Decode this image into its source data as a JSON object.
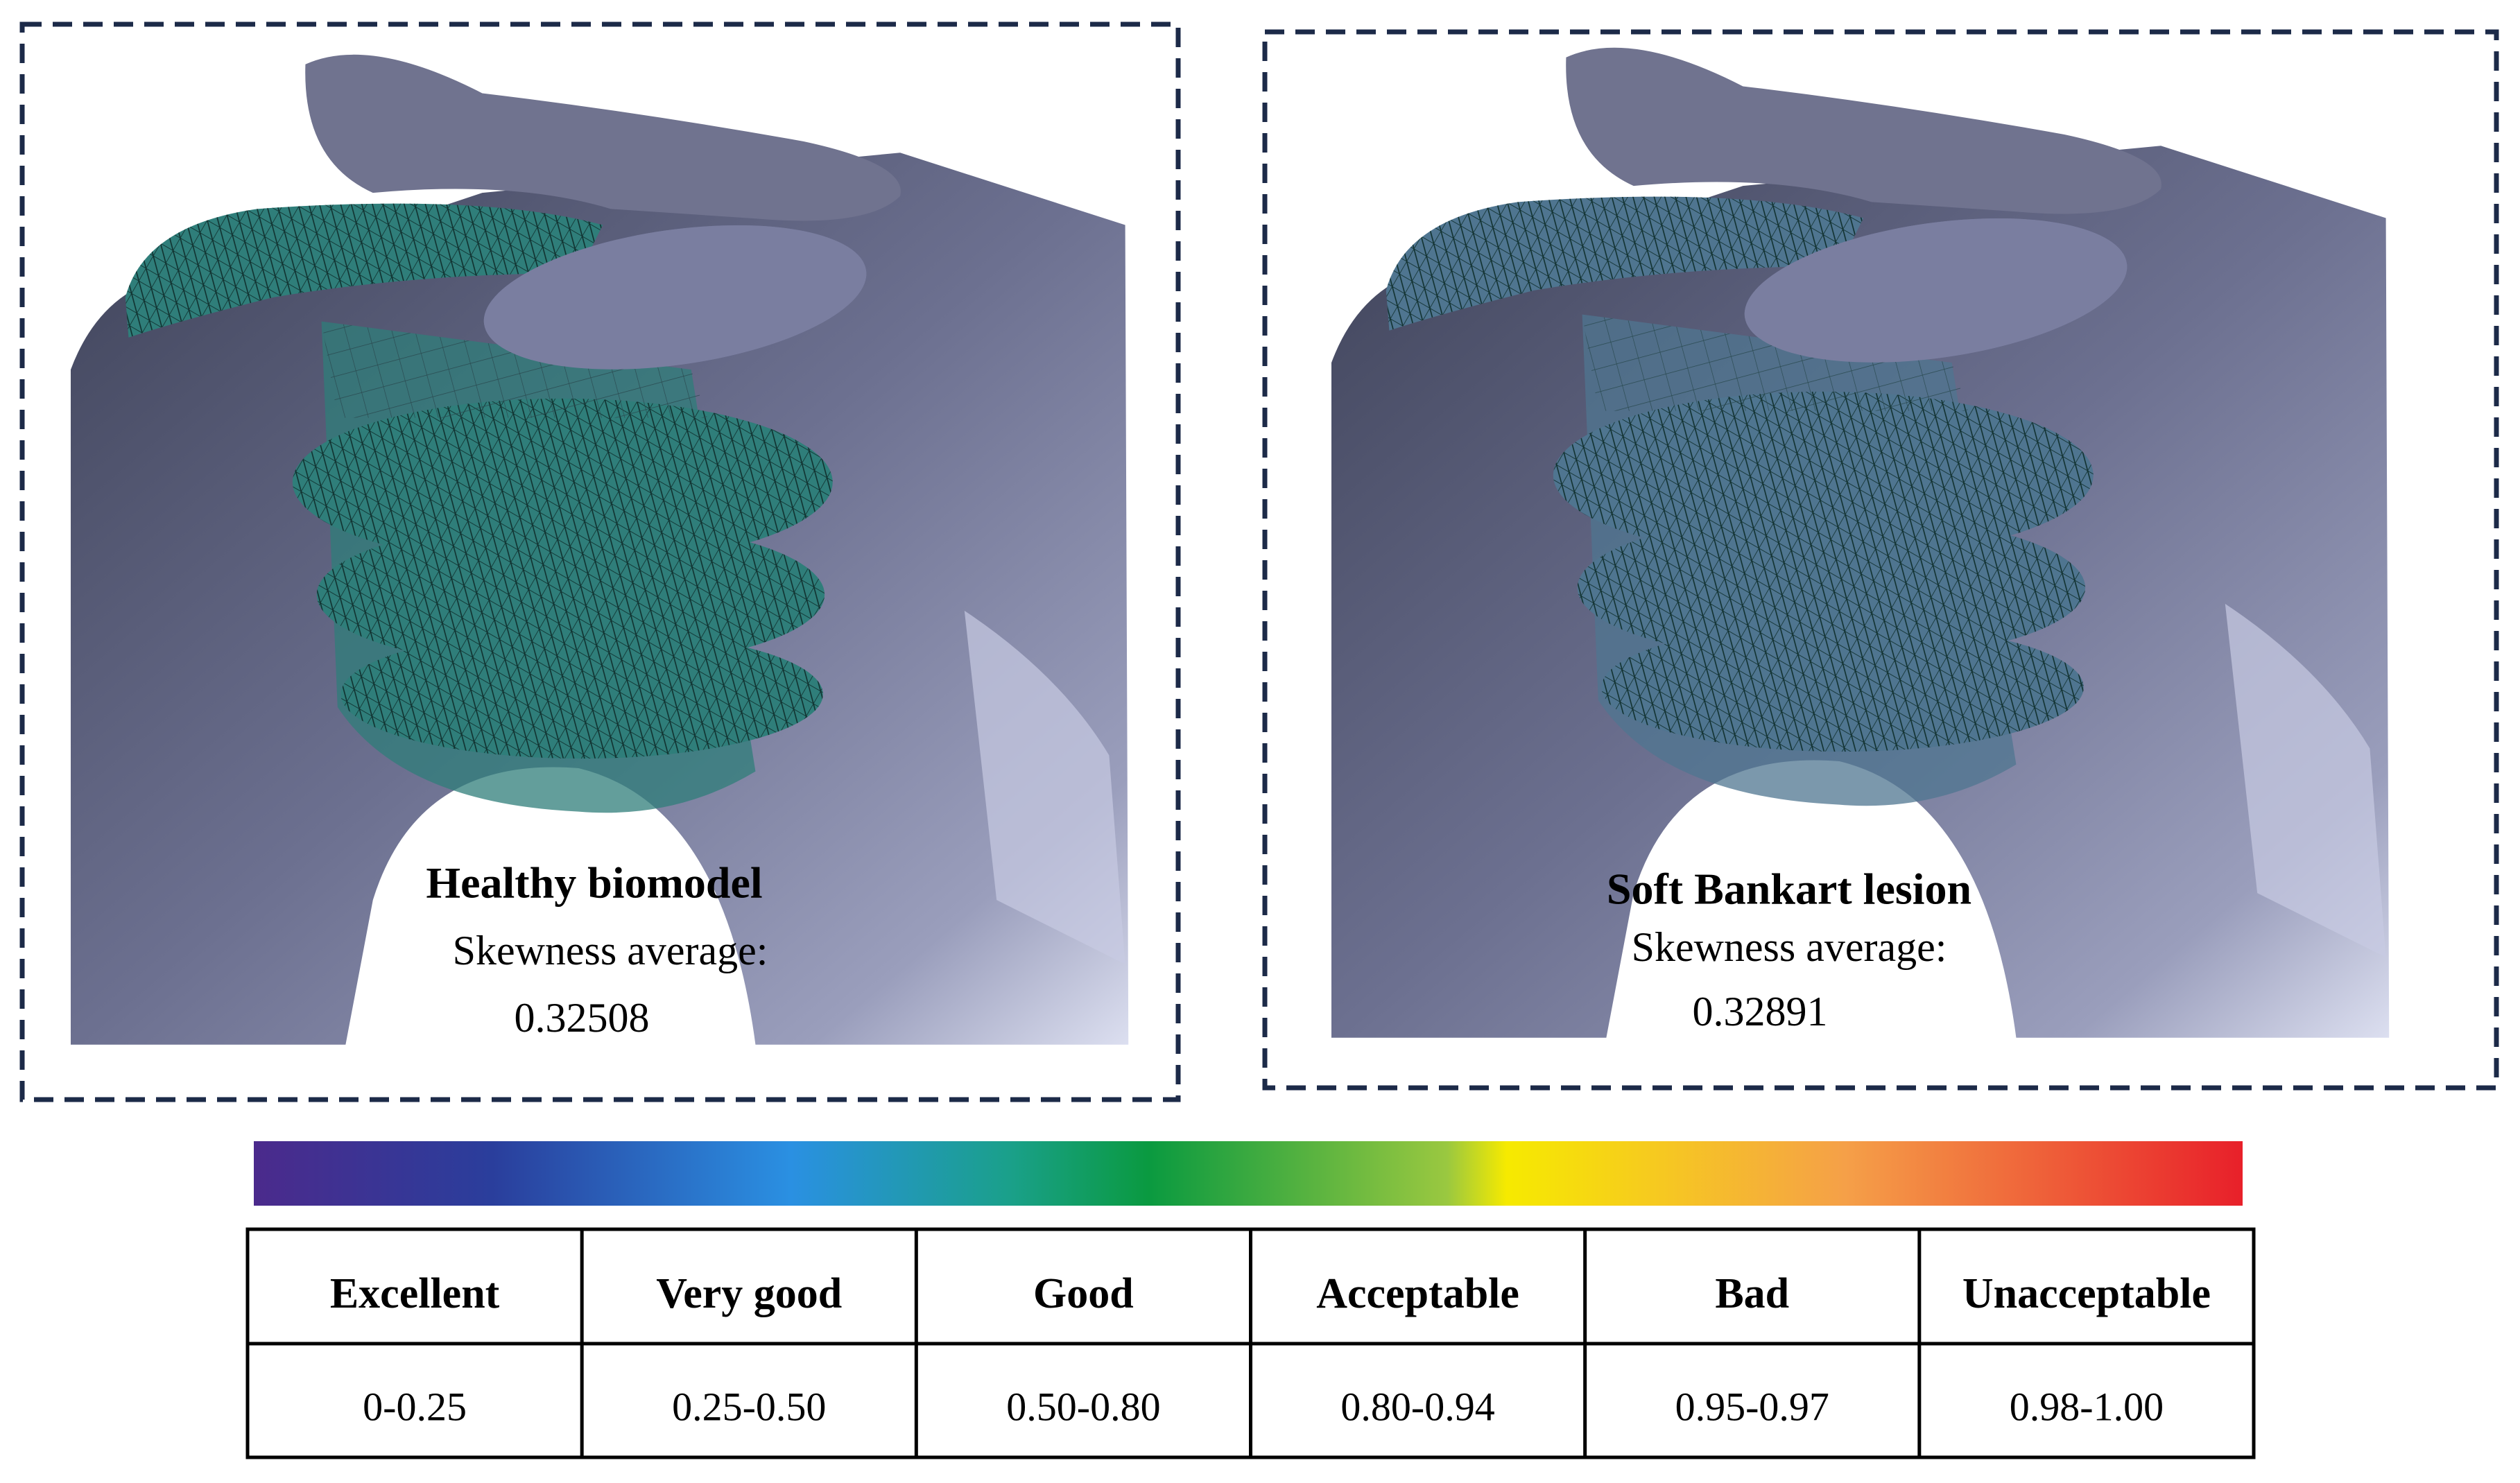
{
  "panels": [
    {
      "title": "Healthy biomodel",
      "label": "Skewness average:",
      "value": 0.32508
    },
    {
      "title": "Soft Bankart lesion",
      "label": "Skewness average:",
      "value": 0.32891
    }
  ],
  "table": {
    "header": [
      "Excellent",
      "Very good",
      "Good",
      "Acceptable",
      "Bad",
      "Unacceptable"
    ],
    "rows": [
      [
        "0-0.25",
        "0.25-0.50",
        "0.50-0.80",
        "0.80-0.94",
        "0.95-0.97",
        "0.98-1.00"
      ]
    ]
  }
}
